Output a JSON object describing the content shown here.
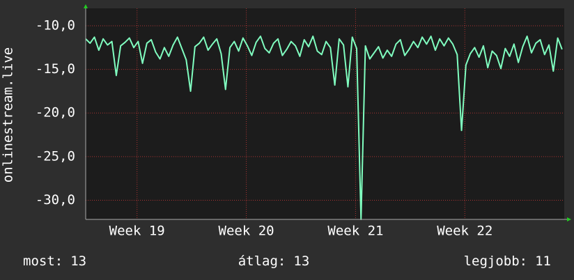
{
  "chart_data": {
    "type": "line",
    "y_label": "onlinestream.live",
    "xlim": [
      18.53,
      22.91
    ],
    "xticks": [
      {
        "value": 19,
        "label": "Week 19"
      },
      {
        "value": 20,
        "label": "Week 20"
      },
      {
        "value": 21,
        "label": "Week 21"
      },
      {
        "value": 22,
        "label": "Week 22"
      }
    ],
    "ylim": [
      -32.2,
      -8
    ],
    "yticks": [
      {
        "value": -30,
        "label": "-30,0"
      },
      {
        "value": -25,
        "label": "-25,0"
      },
      {
        "value": -20,
        "label": "-20,0"
      },
      {
        "value": -15,
        "label": "-15,0"
      },
      {
        "value": -10,
        "label": "-10,0"
      }
    ],
    "grid": true,
    "x": [
      18.53,
      18.57,
      18.61,
      18.65,
      18.69,
      18.73,
      18.77,
      18.81,
      18.85,
      18.89,
      18.93,
      18.97,
      19.01,
      19.05,
      19.09,
      19.13,
      19.17,
      19.21,
      19.25,
      19.29,
      19.33,
      19.37,
      19.41,
      19.45,
      19.49,
      19.53,
      19.57,
      19.61,
      19.65,
      19.69,
      19.73,
      19.77,
      19.81,
      19.85,
      19.89,
      19.93,
      19.97,
      20.01,
      20.05,
      20.09,
      20.13,
      20.17,
      20.21,
      20.25,
      20.29,
      20.33,
      20.37,
      20.41,
      20.45,
      20.49,
      20.53,
      20.57,
      20.61,
      20.65,
      20.69,
      20.73,
      20.77,
      20.81,
      20.85,
      20.89,
      20.93,
      20.97,
      21.01,
      21.05,
      21.09,
      21.13,
      21.17,
      21.21,
      21.25,
      21.29,
      21.33,
      21.37,
      21.41,
      21.45,
      21.49,
      21.53,
      21.57,
      21.61,
      21.65,
      21.69,
      21.73,
      21.77,
      21.81,
      21.85,
      21.89,
      21.93,
      21.97,
      22.01,
      22.05,
      22.09,
      22.13,
      22.17,
      22.21,
      22.25,
      22.29,
      22.33,
      22.37,
      22.41,
      22.45,
      22.49,
      22.53,
      22.57,
      22.61,
      22.65,
      22.69,
      22.73,
      22.77,
      22.81,
      22.85,
      22.89
    ],
    "series": [
      {
        "color": "#80ffc0",
        "values": [
          -11.5,
          -12,
          -11.3,
          -12.8,
          -11.5,
          -12.2,
          -11.8,
          -15.7,
          -12.3,
          -11.9,
          -11.4,
          -12.5,
          -11.8,
          -14.3,
          -12,
          -11.6,
          -13,
          -13.8,
          -12.5,
          -13.5,
          -12.2,
          -11.3,
          -12.6,
          -13.9,
          -17.5,
          -12.4,
          -12,
          -11.3,
          -12.8,
          -12.1,
          -11.5,
          -13.2,
          -17.3,
          -12.5,
          -11.8,
          -12.9,
          -11.4,
          -12.3,
          -13.4,
          -11.9,
          -11.2,
          -12.6,
          -13.1,
          -12,
          -11.5,
          -13.4,
          -12.7,
          -11.8,
          -12.3,
          -13.5,
          -11.6,
          -12.4,
          -11.2,
          -12.9,
          -13.3,
          -11.8,
          -12.5,
          -16.8,
          -11.5,
          -12.2,
          -17,
          -11.3,
          -12.6,
          -32.2,
          -12.3,
          -13.8,
          -13.1,
          -12.4,
          -13.7,
          -12.8,
          -13.5,
          -12.1,
          -11.6,
          -13.4,
          -12.7,
          -11.8,
          -12.5,
          -11.3,
          -12.1,
          -11.2,
          -12.8,
          -11.5,
          -12.3,
          -11.4,
          -12.1,
          -13.3,
          -22,
          -14.5,
          -13.2,
          -12.5,
          -13.6,
          -12.3,
          -14.8,
          -12.9,
          -13.4,
          -14.9,
          -12.6,
          -13.5,
          -12.1,
          -14.2,
          -12.4,
          -11.2,
          -13.1,
          -12,
          -11.6,
          -13.3,
          -12.2,
          -15.2,
          -11.4,
          -12.7
        ]
      }
    ],
    "stats": [
      {
        "label": "most:",
        "value": 13
      },
      {
        "label": "átlag:",
        "value": 13
      },
      {
        "label": "legjobb:",
        "value": 11
      }
    ]
  }
}
